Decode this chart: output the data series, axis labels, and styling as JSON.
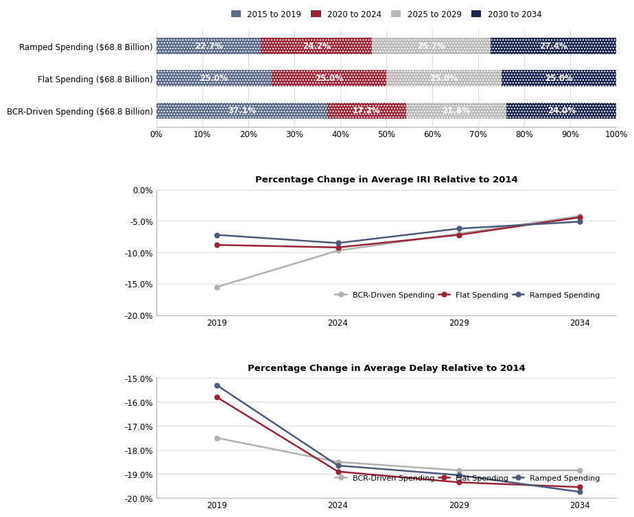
{
  "bar_categories": [
    "Ramped Spending ($68.8 Billion)",
    "Flat Spending ($68.8 Billion)",
    "BCR-Driven Spending ($68.8 Billion)"
  ],
  "bar_data": {
    "2015 to 2019": [
      22.7,
      25.0,
      37.1
    ],
    "2020 to 2024": [
      24.2,
      25.0,
      17.2
    ],
    "2025 to 2029": [
      25.7,
      25.0,
      21.8
    ],
    "2030 to 2034": [
      27.4,
      25.0,
      24.0
    ]
  },
  "bar_colors": {
    "2015 to 2019": "#5b6a8a",
    "2020 to 2024": "#9b2335",
    "2025 to 2029": "#b8b8b8",
    "2030 to 2034": "#1a2450"
  },
  "bar_legend_labels": [
    "2015 to 2019",
    "2020 to 2024",
    "2025 to 2029",
    "2030 to 2034"
  ],
  "iri_title": "Percentage Change in Average IRI Relative to 2014",
  "iri_years": [
    2019,
    2024,
    2029,
    2034
  ],
  "iri_data": {
    "BCR-Driven Spending": [
      -15.5,
      -9.7,
      -7.0,
      -4.2
    ],
    "Flat Spending": [
      -8.8,
      -9.2,
      -7.2,
      -4.4
    ],
    "Ramped Spending": [
      -7.2,
      -8.5,
      -6.2,
      -5.1
    ]
  },
  "iri_ylim": [
    -20.0,
    0.0
  ],
  "iri_yticks": [
    0.0,
    -5.0,
    -10.0,
    -15.0,
    -20.0
  ],
  "delay_title": "Percentage Change in Average Delay Relative to 2014",
  "delay_years": [
    2019,
    2024,
    2029,
    2034
  ],
  "delay_data": {
    "BCR-Driven Spending": [
      -17.5,
      -18.5,
      -18.85,
      -18.85
    ],
    "Flat Spending": [
      -15.8,
      -18.9,
      -19.35,
      -19.55
    ],
    "Ramped Spending": [
      -15.3,
      -18.65,
      -19.05,
      -19.75
    ]
  },
  "delay_ylim": [
    -20.0,
    -15.0
  ],
  "delay_yticks": [
    -15.0,
    -16.0,
    -17.0,
    -18.0,
    -19.0,
    -20.0
  ],
  "line_colors": {
    "BCR-Driven Spending": "#b0b0b0",
    "Flat Spending": "#9b2335",
    "Ramped Spending": "#4a5a7a"
  },
  "line_marker": "o",
  "line_width": 1.8,
  "marker_size": 5,
  "bg_color": "#ffffff",
  "grid_color": "#cccccc",
  "legend_order": [
    "BCR-Driven Spending",
    "Flat Spending",
    "Ramped Spending"
  ]
}
